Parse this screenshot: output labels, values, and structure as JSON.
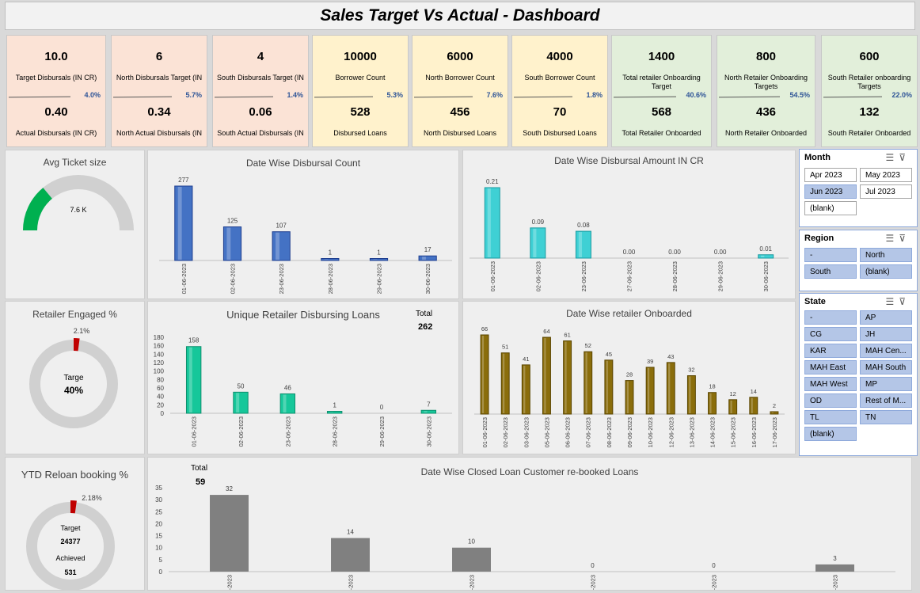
{
  "title": "Sales Target Vs Actual - Dashboard",
  "kpis": [
    {
      "top": "10.0",
      "top_label": "Target Disbursals (IN CR)",
      "pct": "4.0%",
      "bottom": "0.40",
      "bottom_label": "Actual Disbursals (IN CR)",
      "color": "pink"
    },
    {
      "top": "6",
      "top_label": "North Disbursals Target (IN",
      "pct": "5.7%",
      "bottom": "0.34",
      "bottom_label": "North Actual Disbursals (IN",
      "color": "pink"
    },
    {
      "top": "4",
      "top_label": "South  Disbursals Target (IN",
      "pct": "1.4%",
      "bottom": "0.06",
      "bottom_label": "South Actual Disbursals (IN",
      "color": "pink"
    },
    {
      "top": "10000",
      "top_label": "Borrower Count",
      "pct": "5.3%",
      "bottom": "528",
      "bottom_label": "Disbursed Loans",
      "color": "yellow"
    },
    {
      "top": "6000",
      "top_label": "North Borrower Count",
      "pct": "7.6%",
      "bottom": "456",
      "bottom_label": "North Disbursed Loans",
      "color": "yellow"
    },
    {
      "top": "4000",
      "top_label": "South  Borrower Count",
      "pct": "1.8%",
      "bottom": "70",
      "bottom_label": "South Disbursed Loans",
      "color": "yellow"
    },
    {
      "top": "1400",
      "top_label": "Total retailer Onboarding Target",
      "pct": "40.6%",
      "bottom": "568",
      "bottom_label": "Total Retailer Onboarded",
      "color": "green"
    },
    {
      "top": "800",
      "top_label": "North  Retailer Onboarding Targets",
      "pct": "54.5%",
      "bottom": "436",
      "bottom_label": "North Retailer Onboarded",
      "color": "green"
    },
    {
      "top": "600",
      "top_label": "South  Retailer onboarding Targets",
      "pct": "22.0%",
      "bottom": "132",
      "bottom_label": "South Retailer Onboarded",
      "color": "green"
    }
  ],
  "avg_ticket": {
    "title": "Avg Ticket size",
    "value": "7.6 K",
    "fraction": 0.28
  },
  "retailer_engaged": {
    "title": "Retailer Engaged %",
    "pct": "2.1%",
    "center_label": "Targe",
    "center_value": "40%",
    "fraction": 0.021
  },
  "reloan": {
    "title": "YTD Reloan booking %",
    "pct": "2.18%",
    "target_label": "Target",
    "target_value": "24377",
    "achieved_label": "Achieved",
    "achieved_value": "531",
    "fraction": 0.0218
  },
  "slicers": {
    "month": {
      "header": "Month",
      "items": [
        {
          "label": "Apr 2023",
          "sel": false
        },
        {
          "label": "May 2023",
          "sel": false
        },
        {
          "label": "Jun 2023",
          "sel": true
        },
        {
          "label": "Jul 2023",
          "sel": false
        },
        {
          "label": "(blank)",
          "sel": false
        }
      ]
    },
    "region": {
      "header": "Region",
      "items": [
        {
          "label": "-",
          "sel": true
        },
        {
          "label": "North",
          "sel": true
        },
        {
          "label": "South",
          "sel": true
        },
        {
          "label": "(blank)",
          "sel": true
        }
      ]
    },
    "state": {
      "header": "State",
      "items": [
        {
          "label": "-",
          "sel": true
        },
        {
          "label": "AP",
          "sel": true
        },
        {
          "label": "CG",
          "sel": true
        },
        {
          "label": "JH",
          "sel": true
        },
        {
          "label": "KAR",
          "sel": true
        },
        {
          "label": "MAH Cen...",
          "sel": true
        },
        {
          "label": "MAH East",
          "sel": true
        },
        {
          "label": "MAH South",
          "sel": true
        },
        {
          "label": "MAH West",
          "sel": true
        },
        {
          "label": "MP",
          "sel": true
        },
        {
          "label": "OD",
          "sel": true
        },
        {
          "label": "Rest of M...",
          "sel": true
        },
        {
          "label": "TL",
          "sel": true
        },
        {
          "label": "TN",
          "sel": true
        },
        {
          "label": "(blank)",
          "sel": true
        }
      ]
    }
  },
  "chart_data": [
    {
      "id": "count",
      "type": "bar",
      "title": "Date Wise Disbursal Count",
      "categories": [
        "01-06-2023",
        "02-06-2023",
        "23-06-2023",
        "28-06-2023",
        "29-06-2023",
        "30-06-2023"
      ],
      "values": [
        277,
        125,
        107,
        1,
        1,
        17
      ],
      "labels": [
        "277",
        "125",
        "107",
        "1",
        "1",
        "17"
      ],
      "color": "#4472c4"
    },
    {
      "id": "amount",
      "type": "bar",
      "title": "Date Wise Disbursal Amount IN CR",
      "categories": [
        "01-06-2023",
        "02-06-2023",
        "23-06-2023",
        "27-06-2023",
        "28-06-2023",
        "29-06-2023",
        "30-06-2023"
      ],
      "values": [
        0.21,
        0.09,
        0.08,
        0.0,
        0.0,
        0.0,
        0.01
      ],
      "labels": [
        "0.21",
        "0.09",
        "0.08",
        "0.00",
        "0.00",
        "0.00",
        "0.01"
      ],
      "color": "#3fd0d4"
    },
    {
      "id": "unique",
      "type": "bar",
      "title": "Unique Retailer Disbursing Loans",
      "total_label": "Total",
      "total_value": "262",
      "categories": [
        "01-06-2023",
        "02-06-2023",
        "23-06-2023",
        "28-06-2023",
        "29-06-2023",
        "30-06-2023"
      ],
      "values": [
        158,
        50,
        46,
        1,
        0,
        7
      ],
      "labels": [
        "158",
        "50",
        "46",
        "1",
        "0",
        "7"
      ],
      "yticks": [
        "0",
        "20",
        "40",
        "60",
        "80",
        "100",
        "120",
        "140",
        "160",
        "180"
      ],
      "ylim": [
        0,
        180
      ],
      "color": "#16c79a"
    },
    {
      "id": "onboard",
      "type": "bar",
      "title": "Date Wise retailer Onboarded",
      "categories": [
        "01-06-2023",
        "02-06-2023",
        "03-06-2023",
        "05-06-2023",
        "06-06-2023",
        "07-06-2023",
        "08-06-2023",
        "09-06-2023",
        "10-06-2023",
        "12-06-2023",
        "13-06-2023",
        "14-06-2023",
        "15-06-2023",
        "16-06-2023",
        "17-06-2023"
      ],
      "values": [
        66,
        51,
        41,
        64,
        61,
        52,
        45,
        28,
        39,
        43,
        32,
        18,
        12,
        14,
        2
      ],
      "labels": [
        "66",
        "51",
        "41",
        "64",
        "61",
        "52",
        "45",
        "28",
        "39",
        "43",
        "32",
        "18",
        "12",
        "14",
        "2"
      ],
      "color": "#8a6d0b"
    },
    {
      "id": "reloan",
      "type": "bar",
      "title": "Date Wise Closed Loan Customer re-booked Loans",
      "total_label": "Total",
      "total_value": "59",
      "categories": [
        "-2023",
        "-2023",
        "-2023",
        "-2023",
        "-2023",
        "-2023"
      ],
      "values": [
        32,
        14,
        10,
        0,
        0,
        3
      ],
      "labels": [
        "32",
        "14",
        "10",
        "0",
        "0",
        "3"
      ],
      "yticks": [
        "0",
        "5",
        "10",
        "15",
        "20",
        "25",
        "30",
        "35"
      ],
      "ylim": [
        0,
        35
      ],
      "color": "#808080"
    }
  ]
}
